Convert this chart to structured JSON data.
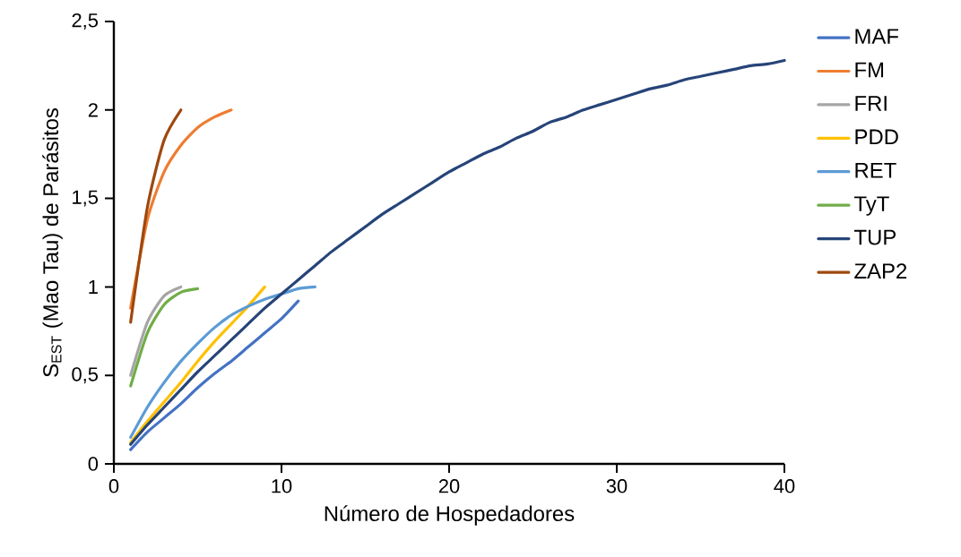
{
  "chart_data": {
    "type": "line",
    "xlabel": "Número de Hospedadores",
    "ylabel": "S$_{EST}$ (Mao Tau) de Parásitos",
    "xlim": [
      0,
      40
    ],
    "xticks": [
      0,
      10,
      20,
      30,
      40
    ],
    "ylim": [
      0,
      2.5
    ],
    "yticks": [
      0,
      {
        "value": 0.5,
        "label": "0,5"
      },
      1,
      {
        "value": 1.5,
        "label": "1,5"
      },
      2,
      {
        "value": 2.5,
        "label": "2,5"
      }
    ],
    "legend": "right",
    "grid": false,
    "series": [
      {
        "name": "MAF",
        "color": "#4472c4",
        "x": [
          1,
          2,
          3,
          4,
          5,
          6,
          7,
          8,
          9,
          10,
          11
        ],
        "values": [
          0.08,
          0.18,
          0.26,
          0.34,
          0.43,
          0.51,
          0.58,
          0.66,
          0.74,
          0.82,
          0.92
        ]
      },
      {
        "name": "FM",
        "color": "#ed7d31",
        "x": [
          1,
          2,
          3,
          4,
          5,
          6,
          7
        ],
        "values": [
          0.88,
          1.38,
          1.65,
          1.8,
          1.9,
          1.96,
          2.0
        ]
      },
      {
        "name": "FRI",
        "color": "#a5a5a5",
        "x": [
          1,
          2,
          3,
          4
        ],
        "values": [
          0.5,
          0.8,
          0.95,
          1.0
        ]
      },
      {
        "name": "PDD",
        "color": "#ffc000",
        "x": [
          1,
          2,
          3,
          4,
          5,
          6,
          7,
          8,
          9
        ],
        "values": [
          0.12,
          0.24,
          0.35,
          0.46,
          0.58,
          0.69,
          0.79,
          0.89,
          1.0
        ]
      },
      {
        "name": "RET",
        "color": "#5b9bd5",
        "x": [
          1,
          2,
          3,
          4,
          5,
          6,
          7,
          8,
          9,
          10,
          11,
          12
        ],
        "values": [
          0.15,
          0.32,
          0.46,
          0.58,
          0.68,
          0.77,
          0.84,
          0.89,
          0.93,
          0.96,
          0.99,
          1.0
        ]
      },
      {
        "name": "TyT",
        "color": "#70ad47",
        "x": [
          1,
          2,
          3,
          4,
          5
        ],
        "values": [
          0.44,
          0.74,
          0.9,
          0.97,
          0.99
        ]
      },
      {
        "name": "TUP",
        "color": "#264478",
        "x": [
          1,
          2,
          3,
          4,
          5,
          6,
          7,
          8,
          9,
          10,
          11,
          12,
          13,
          14,
          15,
          16,
          17,
          18,
          19,
          20,
          21,
          22,
          23,
          24,
          25,
          26,
          27,
          28,
          29,
          30,
          31,
          32,
          33,
          34,
          35,
          36,
          37,
          38,
          39,
          40
        ],
        "values": [
          0.11,
          0.22,
          0.32,
          0.42,
          0.52,
          0.61,
          0.7,
          0.79,
          0.88,
          0.96,
          1.04,
          1.12,
          1.2,
          1.27,
          1.34,
          1.41,
          1.47,
          1.53,
          1.59,
          1.65,
          1.7,
          1.75,
          1.79,
          1.84,
          1.88,
          1.93,
          1.96,
          2.0,
          2.03,
          2.06,
          2.09,
          2.12,
          2.14,
          2.17,
          2.19,
          2.21,
          2.23,
          2.25,
          2.26,
          2.28
        ]
      },
      {
        "name": "ZAP2",
        "color": "#9e480e",
        "x": [
          1,
          2,
          3,
          4
        ],
        "values": [
          0.8,
          1.45,
          1.83,
          2.0
        ]
      }
    ]
  }
}
